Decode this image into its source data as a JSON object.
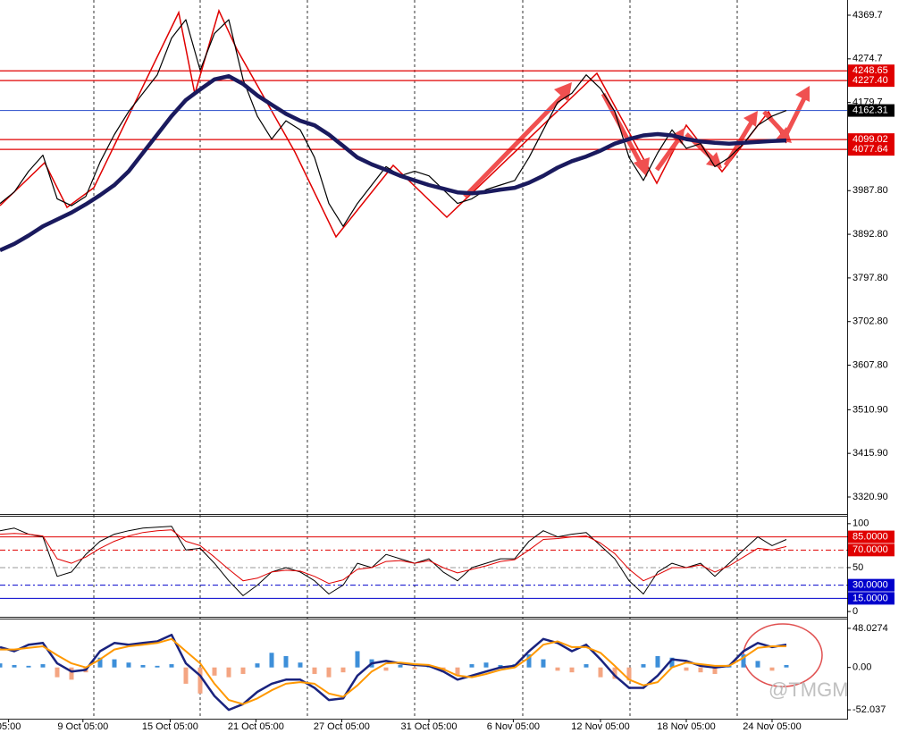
{
  "chart_data": [
    {
      "type": "line",
      "ylim": [
        3283.9,
        4402.8
      ],
      "yticks": [
        4369.7,
        4274.7,
        4179.7,
        {
          "value": 3987.8,
          "label": "3987.80"
        },
        {
          "value": 3892.8,
          "label": "3892.80"
        },
        {
          "value": 3797.8,
          "label": "3797.80"
        },
        {
          "value": 3702.8,
          "label": "3702.80"
        },
        {
          "value": 3607.8,
          "label": "3607.80"
        },
        {
          "value": 3510.9,
          "label": "3510.90"
        },
        {
          "value": 3415.9,
          "label": "3415.90"
        },
        {
          "value": 3320.9,
          "label": "3320.90"
        }
      ],
      "levels": [
        4248.65,
        {
          "value": 4227.4,
          "label": "4227.40"
        },
        4162.31,
        4099.02,
        4077.64
      ],
      "level_colors": [
        "#e00000",
        "#e00000",
        "#4060d0",
        "#e00000",
        "#e00000"
      ],
      "level_label_backgrounds": [
        "#e00000",
        "#e00000",
        "#000000",
        "#e00000",
        "#e00000"
      ],
      "xlim": [
        0,
        59
      ],
      "series": [
        {
          "name": "Price",
          "type": "line",
          "color": "#000000",
          "width": 1.2,
          "values": [
            3960,
            3985,
            4030,
            4065,
            3970,
            3955,
            3975,
            4050,
            4110,
            4160,
            4200,
            4240,
            4320,
            4360,
            4250,
            4330,
            4360,
            4230,
            4150,
            4100,
            4140,
            4120,
            4060,
            3960,
            3910,
            3960,
            4000,
            4040,
            4020,
            4030,
            4020,
            3990,
            3960,
            3970,
            3990,
            4000,
            4010,
            4060,
            4120,
            4180,
            4200,
            4240,
            4210,
            4160,
            4060,
            4010,
            4070,
            4120,
            4080,
            4090,
            4040,
            4060,
            4090,
            4130,
            4150,
            4162.31
          ]
        },
        {
          "name": "MA",
          "type": "line",
          "color": "#1a1a5e",
          "width": 4.5,
          "values": [
            3858,
            3872,
            3890,
            3910,
            3925,
            3940,
            3958,
            3978,
            4000,
            4030,
            4070,
            4110,
            4150,
            4185,
            4208,
            4230,
            4237,
            4220,
            4195,
            4175,
            4155,
            4140,
            4130,
            4110,
            4085,
            4060,
            4045,
            4033,
            4020,
            4010,
            4000,
            3992,
            3984,
            3982,
            3985,
            3990,
            3994,
            4005,
            4020,
            4038,
            4052,
            4062,
            4075,
            4090,
            4100,
            4108,
            4111,
            4108,
            4100,
            4095,
            4092,
            4090,
            4092,
            4094,
            4096,
            4097
          ]
        }
      ]
    },
    {
      "type": "line",
      "ylim": [
        -6,
        109
      ],
      "yticks": [
        100,
        {
          "value": 85,
          "label": "85.0000"
        },
        {
          "value": 70,
          "label": "70.0000"
        },
        50,
        {
          "value": 30,
          "label": "30.0000"
        },
        {
          "value": 15,
          "label": "15.0000"
        },
        0
      ],
      "tick_line_colors": [
        null,
        "#e00000",
        "#e00000",
        "#999999",
        "#0000cc",
        "#0000cc",
        null
      ],
      "tick_label_backgrounds": [
        null,
        "#e00000",
        "#e00000",
        null,
        "#0000cc",
        "#0000cc",
        null
      ],
      "xlim": [
        0,
        59
      ],
      "series": [
        {
          "name": "Fast",
          "type": "line",
          "color": "#000000",
          "width": 1,
          "values": [
            92,
            95,
            88,
            85,
            40,
            45,
            65,
            80,
            88,
            92,
            95,
            96,
            97,
            70,
            72,
            55,
            35,
            18,
            30,
            45,
            50,
            45,
            35,
            20,
            30,
            55,
            50,
            65,
            60,
            55,
            60,
            45,
            35,
            50,
            55,
            60,
            60,
            80,
            92,
            85,
            88,
            90,
            75,
            60,
            35,
            20,
            45,
            55,
            50,
            55,
            40,
            55,
            70,
            85,
            75,
            82
          ]
        },
        {
          "name": "Slow",
          "type": "line",
          "color": "#e00000",
          "width": 1,
          "values": [
            88,
            89,
            88,
            86,
            60,
            55,
            62,
            72,
            80,
            86,
            90,
            92,
            93,
            80,
            75,
            62,
            48,
            35,
            38,
            45,
            47,
            46,
            40,
            32,
            36,
            48,
            50,
            57,
            58,
            55,
            58,
            50,
            44,
            48,
            52,
            57,
            59,
            70,
            82,
            83,
            85,
            86,
            78,
            66,
            48,
            35,
            42,
            50,
            50,
            53,
            45,
            52,
            62,
            72,
            70,
            74
          ]
        }
      ]
    },
    {
      "type": "bar",
      "ylim": [
        -64,
        60
      ],
      "yticks": [
        48.0274,
        {
          "value": 0,
          "label": "0.00"
        },
        -52.037
      ],
      "xlim": [
        0,
        59
      ],
      "xticks": [
        {
          "value": 0.6,
          "label": "05:00"
        },
        {
          "value": 5.8,
          "label": "9 Oct 05:00"
        },
        {
          "value": 11.9,
          "label": "15 Oct 05:00"
        },
        {
          "value": 17.9,
          "label": "21 Oct 05:00"
        },
        {
          "value": 23.9,
          "label": "27 Oct 05:00"
        },
        {
          "value": 30,
          "label": "31 Oct 05:00"
        },
        {
          "value": 35.9,
          "label": "6 Nov 05:00"
        },
        {
          "value": 42,
          "label": "12 Nov 05:00"
        },
        {
          "value": 48,
          "label": "18 Nov 05:00"
        },
        {
          "value": 54,
          "label": "24 Nov 05:00"
        }
      ],
      "series": [
        {
          "name": "Histogram",
          "type": "bar",
          "color": "#3d8fd9",
          "negative_color": "#f4a582",
          "values": [
            5,
            3,
            2,
            4,
            -12,
            -15,
            -6,
            12,
            10,
            6,
            3,
            2,
            4,
            -20,
            -32,
            -10,
            -12,
            -8,
            5,
            18,
            14,
            6,
            -8,
            -12,
            -6,
            20,
            10,
            -4,
            3,
            -2,
            2,
            -6,
            -10,
            4,
            6,
            3,
            4,
            16,
            10,
            -4,
            -6,
            4,
            -12,
            -14,
            -16,
            4,
            14,
            12,
            -4,
            -6,
            -8,
            2,
            16,
            8,
            -4,
            3
          ]
        },
        {
          "name": "MACD",
          "type": "line",
          "color": "#1a237e",
          "width": 2.5,
          "values": [
            25,
            20,
            28,
            30,
            5,
            -5,
            -3,
            20,
            30,
            28,
            30,
            32,
            40,
            5,
            -10,
            -35,
            -52,
            -45,
            -30,
            -20,
            -15,
            -15,
            -25,
            -40,
            -38,
            -10,
            5,
            8,
            5,
            3,
            2,
            -5,
            -15,
            -10,
            -5,
            0,
            2,
            20,
            35,
            30,
            20,
            28,
            10,
            -10,
            -25,
            -25,
            -10,
            10,
            8,
            2,
            0,
            2,
            20,
            30,
            25,
            28
          ]
        },
        {
          "name": "Signal",
          "type": "line",
          "color": "#ff9800",
          "width": 2,
          "values": [
            22,
            22,
            24,
            26,
            15,
            5,
            0,
            10,
            22,
            26,
            28,
            30,
            35,
            20,
            5,
            -20,
            -40,
            -45,
            -38,
            -28,
            -20,
            -18,
            -20,
            -32,
            -36,
            -22,
            -5,
            5,
            6,
            4,
            3,
            -2,
            -10,
            -12,
            -8,
            -3,
            0,
            12,
            28,
            32,
            25,
            25,
            18,
            2,
            -15,
            -22,
            -18,
            0,
            6,
            4,
            2,
            2,
            12,
            24,
            26,
            26
          ]
        }
      ]
    }
  ],
  "watermark": "@TMGM"
}
